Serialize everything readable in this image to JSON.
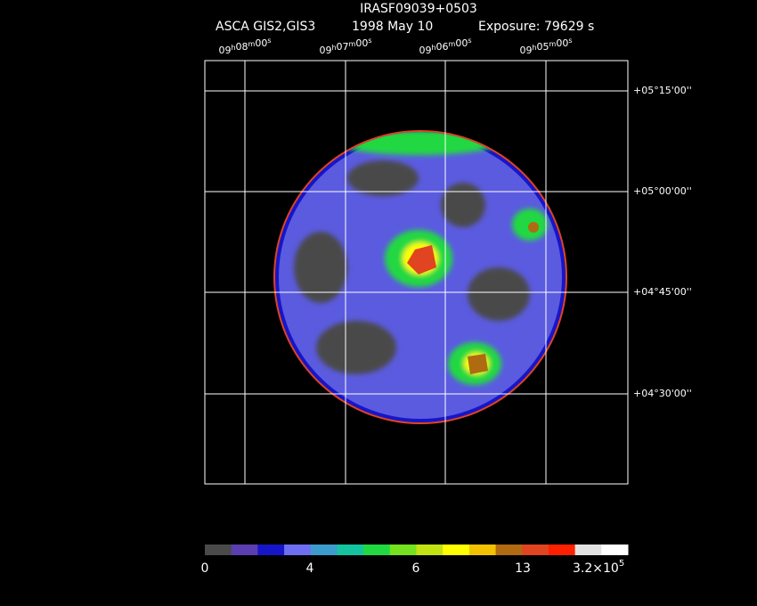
{
  "header": {
    "title": "IRASF09039+0503",
    "instrument": "ASCA GIS2,GIS3",
    "date": "1998 May 10",
    "exposure": "Exposure: 79629 s"
  },
  "ra_units": [
    "h",
    "m",
    "s"
  ],
  "ra_labels": [
    {
      "h": "09",
      "m": "08",
      "s": "00"
    },
    {
      "h": "09",
      "m": "07",
      "s": "00"
    },
    {
      "h": "09",
      "m": "06",
      "s": "00"
    },
    {
      "h": "09",
      "m": "05",
      "s": "00"
    }
  ],
  "dec_labels": [
    "+05°15'00''",
    "+05°00'00''",
    "+04°45'00''",
    "+04°30'00''"
  ],
  "colorbar": {
    "colors": [
      "#4a4a4a",
      "#5b3fb0",
      "#1616c8",
      "#6e6ef2",
      "#3c9ccc",
      "#14c4a0",
      "#22d842",
      "#74e21e",
      "#c2e212",
      "#ffff00",
      "#f2c200",
      "#b06a12",
      "#e04420",
      "#ff2000",
      "#e2e2e2",
      "#ffffff"
    ],
    "labels": [
      "0",
      "4",
      "6",
      "13"
    ],
    "last_label": {
      "mantissa": "3.2×10",
      "exponent": "5"
    }
  }
}
